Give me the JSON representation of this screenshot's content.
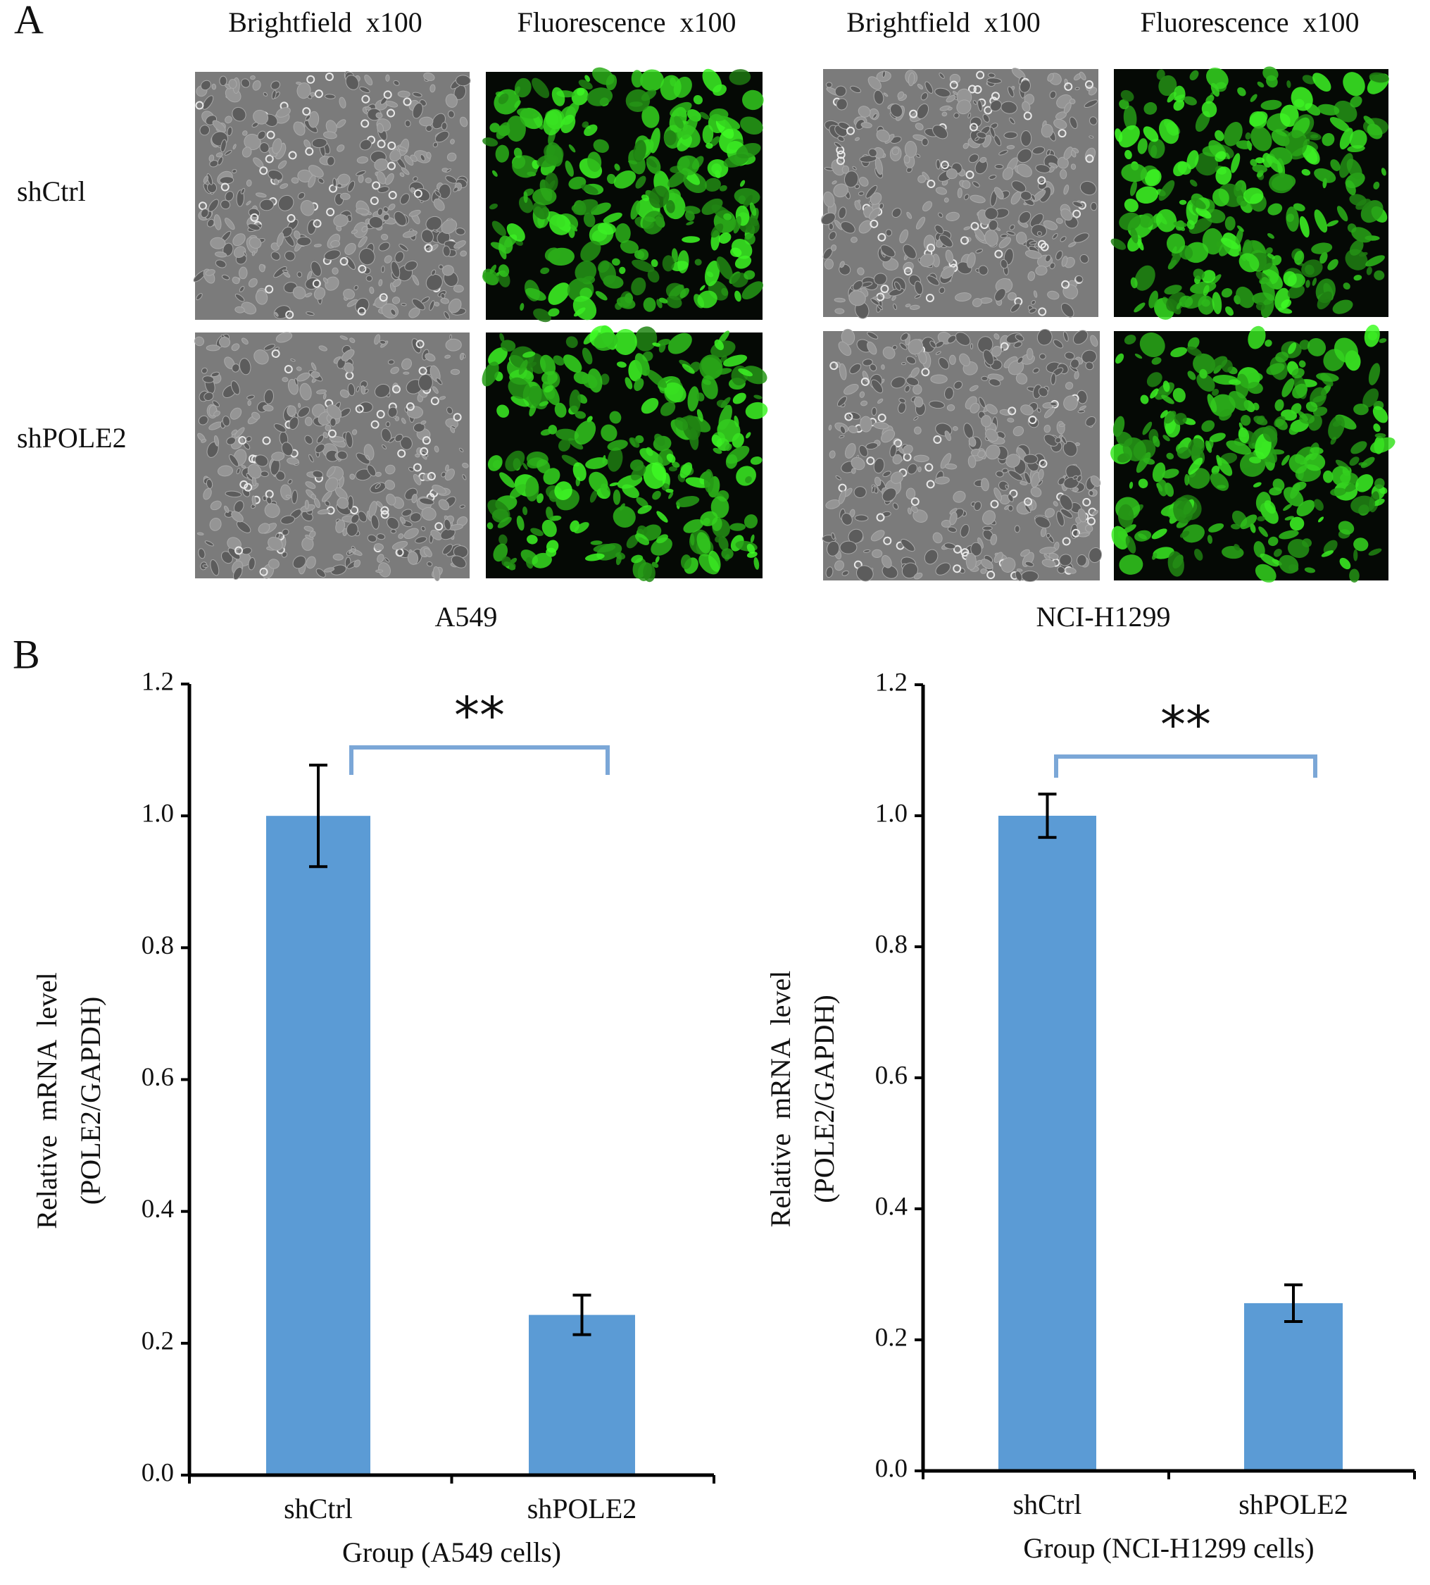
{
  "panel_a": {
    "label": "A",
    "rows": [
      "shCtrl",
      "shPOLE2"
    ],
    "cell_lines": [
      {
        "name": "A549",
        "columns": [
          "Brightfield  x100",
          "Fluorescence  x100"
        ]
      },
      {
        "name": "NCI-H1299",
        "columns": [
          "Brightfield  x100",
          "Fluorescence  x100"
        ]
      }
    ]
  },
  "panel_b": {
    "label": "B"
  },
  "chart_data": [
    {
      "type": "bar",
      "ylabel": [
        "Relative  mRNA  level",
        "(POLE2/GAPDH)"
      ],
      "xlabel": "Group (A549 cells)",
      "categories": [
        "shCtrl",
        "shPOLE2"
      ],
      "values": [
        1.0,
        0.243
      ],
      "errors": [
        0.077,
        0.03
      ],
      "color": "#5b9bd5",
      "annotation": "**",
      "ylim": [
        0,
        1.2
      ],
      "yticks": [
        {
          "value": 0,
          "label": "0.0"
        },
        0.2,
        0.4,
        0.6,
        0.8,
        {
          "value": 1,
          "label": "1.0"
        },
        1.2
      ]
    },
    {
      "type": "bar",
      "ylabel": [
        "Relative  mRNA  level",
        "(POLE2/GAPDH)"
      ],
      "xlabel": "Group (NCI-H1299 cells)",
      "categories": [
        "shCtrl",
        "shPOLE2"
      ],
      "values": [
        1.0,
        0.256
      ],
      "errors": [
        0.033,
        0.028
      ],
      "color": "#5b9bd5",
      "annotation": "**",
      "ylim": [
        0,
        1.2
      ],
      "yticks": [
        {
          "value": 0,
          "label": "0.0"
        },
        0.2,
        0.4,
        0.6,
        0.8,
        {
          "value": 1,
          "label": "1.0"
        },
        1.2
      ]
    }
  ]
}
